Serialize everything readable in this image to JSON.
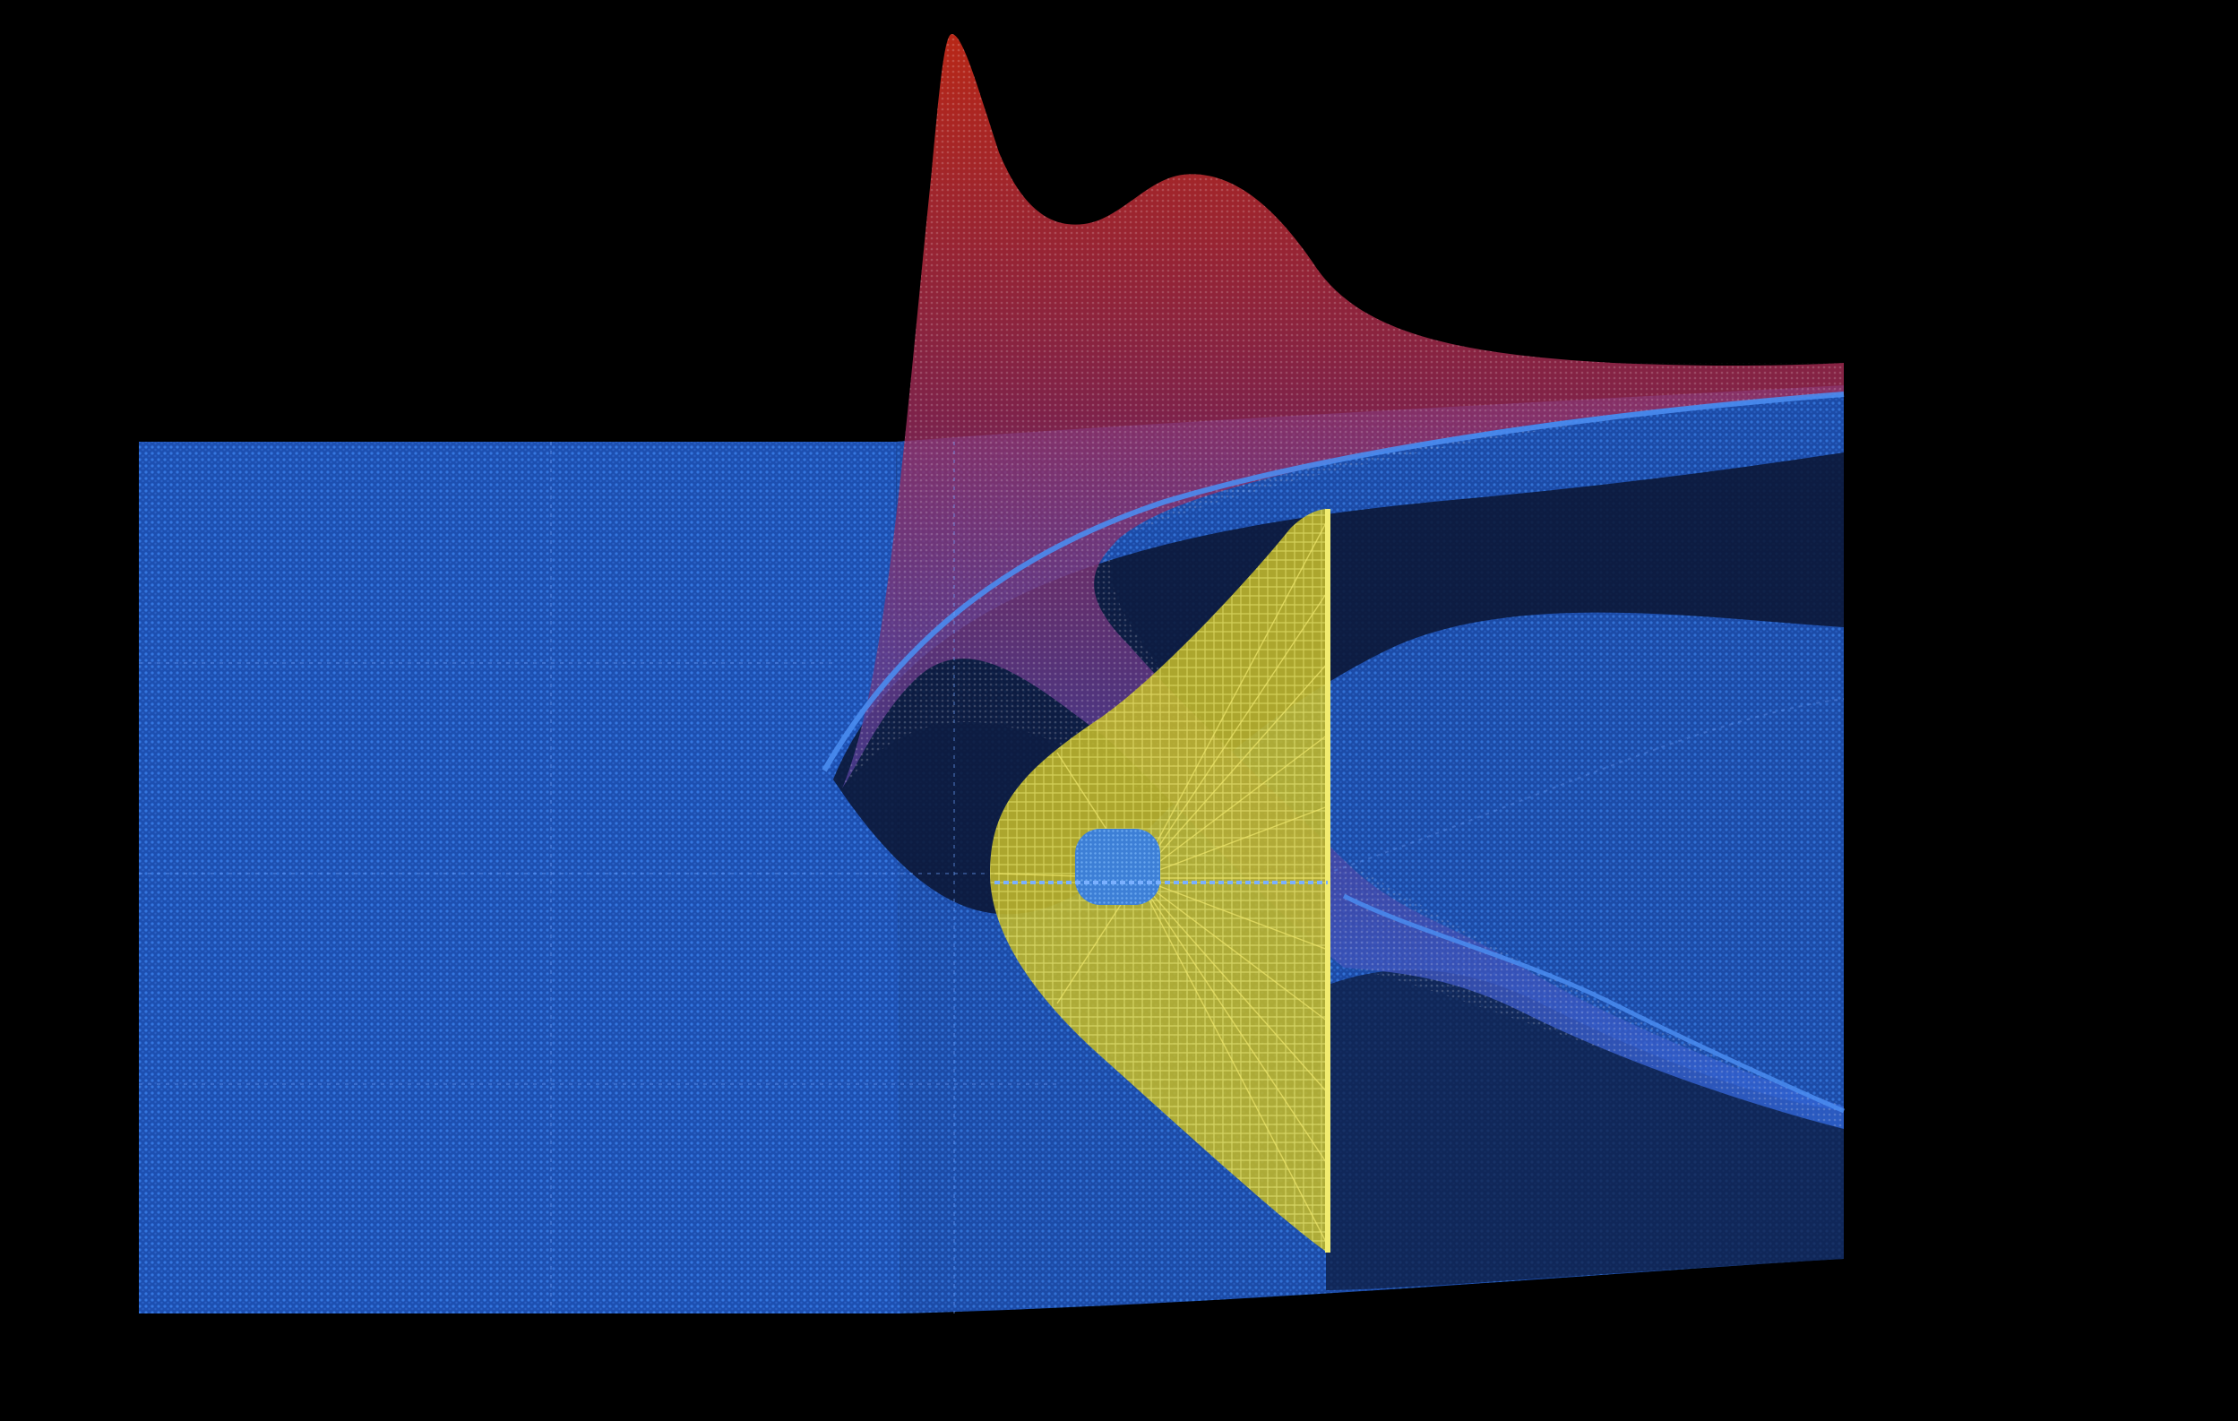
{
  "viewport": {
    "background": "#000000"
  },
  "scene": {
    "kind": "3d-point-cloud-render",
    "layers": [
      {
        "name": "flat-sheet",
        "color": "#2a6bd8"
      },
      {
        "name": "peaked-surface",
        "color_low": "#3a6fe0",
        "color_high": "#e0301c"
      },
      {
        "name": "cone-wireframe",
        "color": "#d8d23a"
      },
      {
        "name": "core-cluster",
        "color": "#4a8fe0"
      }
    ]
  }
}
